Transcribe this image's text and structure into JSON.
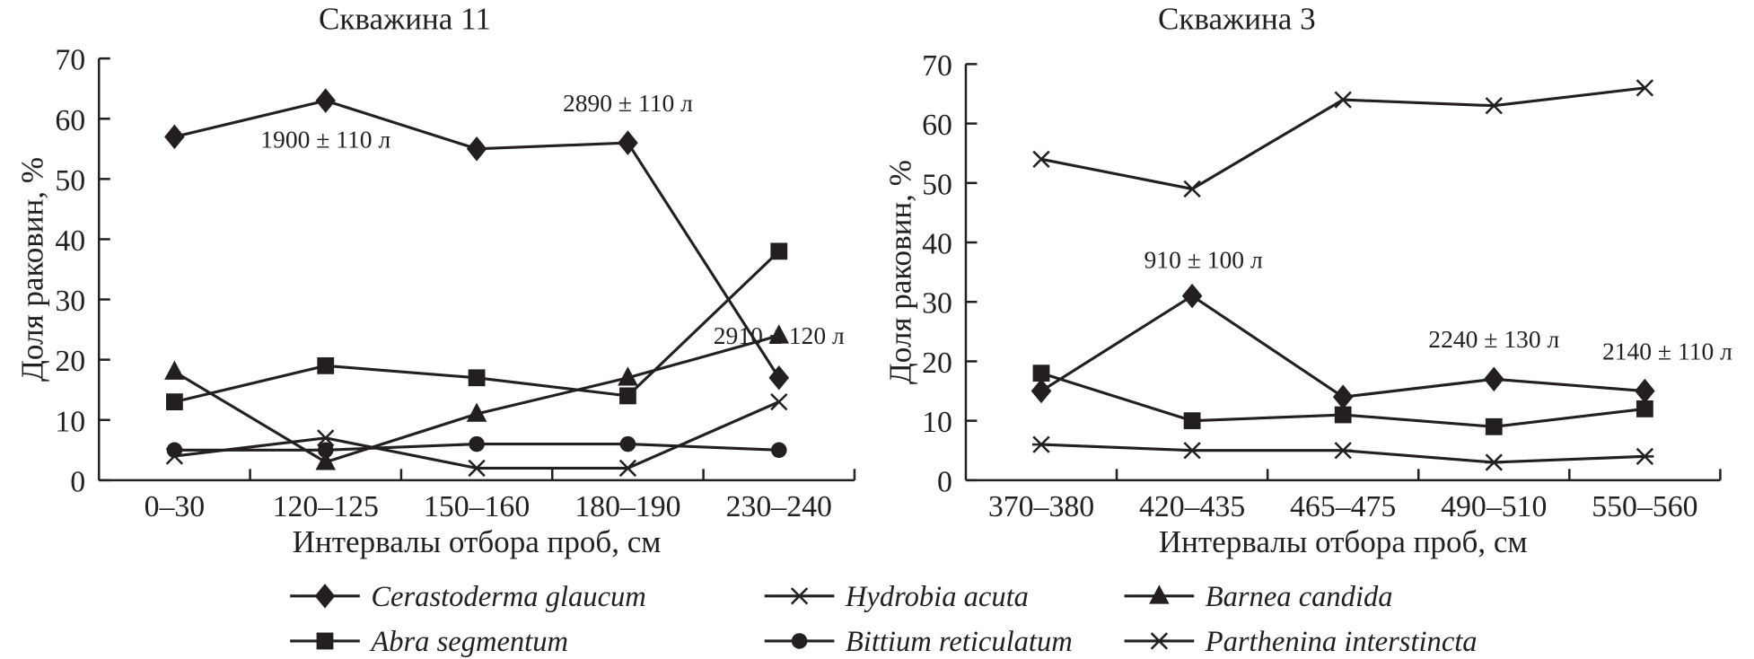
{
  "chart_data": [
    {
      "type": "line",
      "title": "Скважина 11",
      "xlabel": "Интервалы отбора проб, см",
      "ylabel": "Доля раковин, %",
      "ylim": [
        0,
        70
      ],
      "yticks": [
        0,
        10,
        20,
        30,
        40,
        50,
        60,
        70
      ],
      "categories": [
        "0–30",
        "120–125",
        "150–160",
        "180–190",
        "230–240"
      ],
      "grid": false,
      "series": [
        {
          "name": "Cerastoderma glaucum",
          "marker": "diamond",
          "values": [
            57,
            63,
            55,
            56,
            17
          ]
        },
        {
          "name": "Hydrobia acuta",
          "marker": "x",
          "values": [
            4,
            7,
            2,
            2,
            13
          ]
        },
        {
          "name": "Barnea candida",
          "marker": "triangle",
          "values": [
            18,
            3,
            11,
            17,
            24
          ]
        },
        {
          "name": "Abra segmentum",
          "marker": "square",
          "values": [
            13,
            19,
            17,
            14,
            38
          ]
        },
        {
          "name": "Bittium reticulatum",
          "marker": "circle",
          "values": [
            5,
            5,
            6,
            6,
            5
          ]
        }
      ],
      "annotations": [
        {
          "text": "1900 ± 110 л",
          "category": "120–125"
        },
        {
          "text": "2890 ± 110 л",
          "category": "180–190"
        },
        {
          "text": "2910 ± 120 л",
          "category": "230–240"
        }
      ]
    },
    {
      "type": "line",
      "title": "Скважина 3",
      "xlabel": "Интервалы отбора проб, см",
      "ylabel": "Доля раковин, %",
      "ylim": [
        0,
        70
      ],
      "yticks": [
        0,
        10,
        20,
        30,
        40,
        50,
        60,
        70
      ],
      "categories": [
        "370–380",
        "420–435",
        "465–475",
        "490–510",
        "550–560"
      ],
      "grid": false,
      "series": [
        {
          "name": "Hydrobia acuta",
          "marker": "x",
          "values": [
            54,
            49,
            64,
            63,
            66
          ]
        },
        {
          "name": "Cerastoderma glaucum",
          "marker": "diamond",
          "values": [
            15,
            31,
            14,
            17,
            15
          ]
        },
        {
          "name": "Abra segmentum",
          "marker": "square",
          "values": [
            18,
            10,
            11,
            9,
            12
          ]
        },
        {
          "name": "Parthenina interstincta",
          "marker": "asterisk",
          "values": [
            6,
            5,
            5,
            3,
            4
          ]
        }
      ],
      "annotations": [
        {
          "text": "910 ± 100 л",
          "category": "420–435"
        },
        {
          "text": "2240 ± 130 л",
          "category": "490–510"
        },
        {
          "text": "2140 ± 110 л",
          "category": "550–560"
        }
      ]
    }
  ],
  "legend": {
    "placement": "bottom",
    "items": [
      {
        "name": "Cerastoderma glaucum",
        "marker": "diamond"
      },
      {
        "name": "Hydrobia acuta",
        "marker": "x"
      },
      {
        "name": "Barnea candida",
        "marker": "triangle"
      },
      {
        "name": "Abra segmentum",
        "marker": "square"
      },
      {
        "name": "Bittium reticulatum",
        "marker": "circle"
      },
      {
        "name": "Parthenina interstincta",
        "marker": "asterisk"
      }
    ]
  },
  "colors": {
    "ink": "#231f20",
    "background": "#ffffff"
  }
}
